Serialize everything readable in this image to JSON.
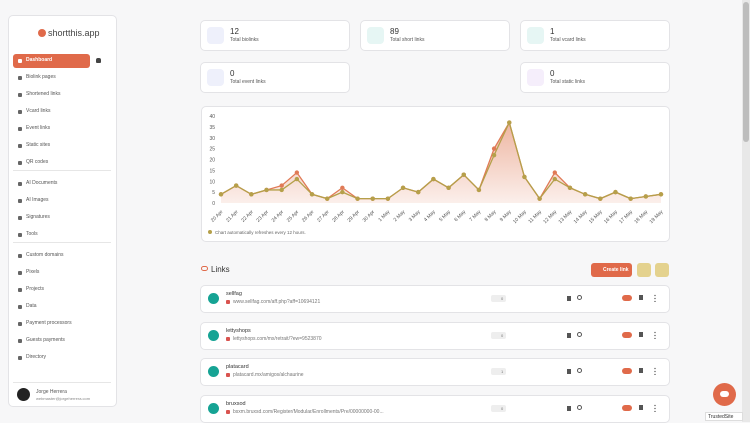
{
  "sidebar": {
    "brand": "shortthis.app",
    "nav": [
      [
        "Dashboard",
        "Biolink pages",
        "Shortened links",
        "Vcard links",
        "Event links",
        "Static sites",
        "QR codes"
      ],
      [
        "AI Documents",
        "AI Images",
        "Signatures",
        "Tools"
      ],
      [
        "Custom domains",
        "Pixels",
        "Projects",
        "Data",
        "Payment processors",
        "Guests payments",
        "Directory"
      ]
    ],
    "user": {
      "name": "Jorge Herrera",
      "email": "webmaster@jorgeherrera.com"
    }
  },
  "stats": [
    {
      "value": 12,
      "label": "Total biolinks"
    },
    {
      "value": 89,
      "label": "Total short links"
    },
    {
      "value": 1,
      "label": "Total vcard links"
    },
    {
      "value": 0,
      "label": "Total event links"
    },
    {
      "value": 0,
      "label": "Total static links"
    }
  ],
  "chart_data": {
    "type": "area",
    "categories": [
      "20 Apr",
      "21 Apr",
      "22 Apr",
      "23 Apr",
      "24 Apr",
      "25 Apr",
      "26 Apr",
      "27 Apr",
      "28 Apr",
      "29 Apr",
      "30 Apr",
      "1 May",
      "2 May",
      "3 May",
      "4 May",
      "5 May",
      "6 May",
      "7 May",
      "8 May",
      "9 May",
      "10 May",
      "11 May",
      "12 May",
      "13 May",
      "14 May",
      "15 May",
      "16 May",
      "17 May",
      "18 May",
      "19 May"
    ],
    "series": [
      {
        "color": "#e07a56",
        "values": [
          4,
          8,
          4,
          6,
          8,
          14,
          4,
          2,
          7,
          2,
          2,
          2,
          7,
          5,
          11,
          7,
          13,
          6,
          25,
          37,
          12,
          2,
          14,
          7,
          4,
          2,
          5,
          2,
          3,
          4
        ]
      },
      {
        "color": "#b5a04a",
        "values": [
          4,
          8,
          4,
          6,
          6,
          11,
          4,
          2,
          5,
          2,
          2,
          2,
          7,
          5,
          11,
          7,
          13,
          6,
          22,
          37,
          12,
          2,
          11,
          7,
          4,
          2,
          5,
          2,
          3,
          4
        ]
      }
    ],
    "ylim": [
      0,
      40
    ],
    "yticks": [
      0,
      5,
      10,
      15,
      20,
      25,
      30,
      35,
      40
    ],
    "grid": false,
    "note": "Chart automatically refreshes every 12 hours."
  },
  "links": {
    "title": "Links",
    "create": "Create link",
    "items": [
      {
        "name": "sellfag",
        "url": "www.sellfag.com/aff.php?aff=10694121",
        "clicks": 0
      },
      {
        "name": "lettyshops",
        "url": "lettyshops.com/mx/retrait/?ew=9523870",
        "clicks": 0
      },
      {
        "name": "platacard",
        "url": "platacard.mx/amigos/alchaurine",
        "clicks": 1
      },
      {
        "name": "bruxsod",
        "url": "bsxm.bruxsd.com/Register/Modular/Enrollments/Pre/00000000-00...",
        "clicks": 0
      }
    ]
  },
  "badge": "TrustedSite"
}
